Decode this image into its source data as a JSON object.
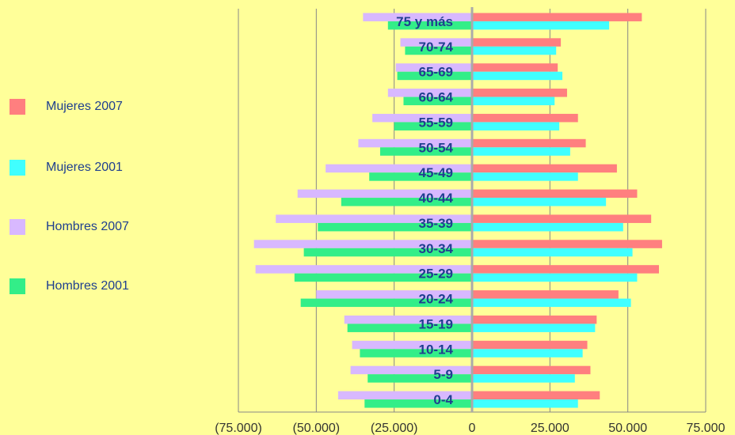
{
  "chart_data": {
    "type": "bar",
    "orientation": "horizontal",
    "layout": "population-pyramid",
    "categories": [
      "0-4",
      "5-9",
      "10-14",
      "15-19",
      "20-24",
      "25-29",
      "30-34",
      "35-39",
      "40-44",
      "45-49",
      "50-54",
      "55-59",
      "60-64",
      "65-69",
      "70-74",
      "75 y más"
    ],
    "series": [
      {
        "name": "Mujeres 2007",
        "color": "#FF7F7F",
        "values": [
          41000,
          38000,
          37000,
          40000,
          47000,
          60000,
          61000,
          57500,
          53000,
          46500,
          36500,
          34000,
          30500,
          27500,
          28500,
          54500
        ]
      },
      {
        "name": "Mujeres 2001",
        "color": "#40FFFF",
        "values": [
          34000,
          33000,
          35500,
          39500,
          51000,
          53000,
          51500,
          48500,
          43000,
          34000,
          31500,
          28000,
          26500,
          29000,
          27000,
          44000
        ]
      },
      {
        "name": "Hombres 2007",
        "color": "#D8B8FF",
        "values": [
          -43000,
          -39000,
          -38500,
          -41000,
          -50000,
          -69500,
          -70000,
          -63000,
          -56000,
          -47000,
          -36500,
          -32000,
          -27000,
          -24500,
          -23000,
          -35000
        ]
      },
      {
        "name": "Hombres 2001",
        "color": "#33EE88",
        "values": [
          -34500,
          -33500,
          -36000,
          -40000,
          -55000,
          -57000,
          -54000,
          -49500,
          -42000,
          -33000,
          -29500,
          -25000,
          -22000,
          -24000,
          -21500,
          -27000
        ]
      }
    ],
    "xlim": [
      -75000,
      75000
    ],
    "xticks": [
      -75000,
      -50000,
      -25000,
      0,
      25000,
      50000,
      75000
    ],
    "xtick_labels": [
      "(75.000)",
      "(50.000)",
      "(25.000)",
      "0",
      "25.000",
      "50.000",
      "75.000"
    ],
    "grid": "vertical",
    "legend_position": "left"
  },
  "colors": {
    "background": "#FFFF99",
    "gridline": "#888888",
    "axis": "#AAAAAA",
    "category_label": "#1F3F8F"
  }
}
